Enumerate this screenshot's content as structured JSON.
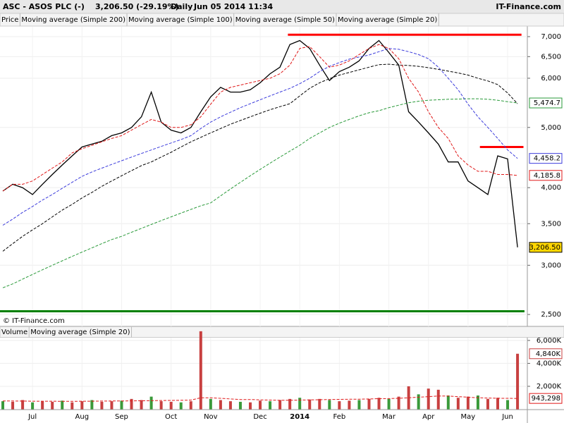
{
  "header": {
    "title": "ASC - ASOS PLC (-)",
    "quote": "3,206.50 (-29.19%)",
    "period": "Daily",
    "date": "Jun 05 2014 11:34",
    "brand": "IT-Finance.com",
    "copyright": "© IT-Finance.com"
  },
  "chart_data": [
    {
      "type": "line",
      "scale": "log",
      "grid": true,
      "categories": [
        null,
        null,
        null,
        "Jul",
        null,
        null,
        null,
        null,
        "Aug",
        null,
        null,
        null,
        "Sep",
        null,
        null,
        null,
        null,
        "Oct",
        null,
        null,
        null,
        "Nov",
        null,
        null,
        null,
        null,
        "Dec",
        null,
        null,
        null,
        "2014",
        null,
        null,
        null,
        "Feb",
        null,
        null,
        null,
        null,
        "Mar",
        null,
        null,
        null,
        "Apr",
        null,
        null,
        null,
        "May",
        null,
        null,
        null,
        "Jun",
        null
      ],
      "ylim": [
        2540,
        7260
      ],
      "yticks": [
        {
          "value": 2500,
          "label": "2,500"
        },
        {
          "value": 3000,
          "label": "3,000"
        },
        {
          "value": 3500,
          "label": "3,500"
        },
        {
          "value": 4000,
          "label": "4,000"
        },
        {
          "value": 5000,
          "label": "5,000"
        },
        {
          "value": 6000,
          "label": "6,000"
        },
        {
          "value": 6500,
          "label": "6,500"
        },
        {
          "value": 7000,
          "label": "7,000"
        }
      ],
      "hlines": [
        {
          "value": 7050,
          "color": "#ff0000",
          "span": [
            28.8,
            52.4
          ]
        },
        {
          "value": 4650,
          "color": "#ff0000",
          "span": [
            48.2,
            52.6
          ]
        },
        {
          "value": 2530,
          "color": "#008000",
          "span": [
            -0.3,
            52.7
          ]
        }
      ],
      "series": [
        {
          "name": "Price",
          "color": "#000000",
          "dash": false,
          "label_bg": "#ffd700",
          "value_labels": {
            "52": "3,206.50"
          },
          "values": [
            3950,
            4050,
            4000,
            3900,
            4050,
            4200,
            4350,
            4500,
            4650,
            4700,
            4750,
            4850,
            4900,
            5000,
            5200,
            5700,
            5100,
            4950,
            4900,
            5000,
            5300,
            5600,
            5800,
            5700,
            5700,
            5750,
            5900,
            6100,
            6250,
            6800,
            6900,
            6700,
            6300,
            5950,
            6150,
            6250,
            6400,
            6700,
            6900,
            6600,
            6300,
            5300,
            5100,
            4900,
            4700,
            4400,
            4400,
            4100,
            4000,
            3900,
            4500,
            4450,
            3206.5
          ]
        },
        {
          "name": "Moving average (Simple 200)",
          "color": "#2a9a3a",
          "dash": true,
          "label_bg": "#ffffff",
          "value_labels": {
            "52": "5,474.7"
          },
          "values": [
            2760,
            2800,
            2850,
            2900,
            2950,
            3000,
            3050,
            3100,
            3150,
            3200,
            3250,
            3300,
            3340,
            3390,
            3440,
            3490,
            3540,
            3590,
            3640,
            3690,
            3740,
            3780,
            3880,
            3980,
            4080,
            4180,
            4280,
            4380,
            4480,
            4580,
            4680,
            4800,
            4900,
            5000,
            5080,
            5150,
            5220,
            5280,
            5320,
            5380,
            5430,
            5480,
            5510,
            5530,
            5540,
            5550,
            5555,
            5560,
            5560,
            5550,
            5530,
            5500,
            5474.7
          ]
        },
        {
          "name": "Moving average (Simple 100)",
          "color": "#000000",
          "dash": true,
          "label_bg": "#ffffff",
          "value_labels": {},
          "values": [
            3160,
            3250,
            3340,
            3420,
            3500,
            3590,
            3680,
            3760,
            3850,
            3930,
            4020,
            4100,
            4180,
            4260,
            4340,
            4400,
            4480,
            4560,
            4650,
            4740,
            4820,
            4900,
            4980,
            5060,
            5130,
            5200,
            5270,
            5340,
            5400,
            5460,
            5620,
            5780,
            5900,
            5990,
            6070,
            6130,
            6190,
            6250,
            6310,
            6320,
            6300,
            6290,
            6270,
            6240,
            6200,
            6160,
            6120,
            6070,
            6000,
            5940,
            5860,
            5680,
            5460
          ]
        },
        {
          "name": "Moving average (Simple 50)",
          "color": "#3c3cdc",
          "dash": true,
          "label_bg": "#ffffff",
          "value_labels": {
            "52": "4,458.2"
          },
          "values": [
            3480,
            3560,
            3650,
            3730,
            3820,
            3900,
            3990,
            4080,
            4170,
            4240,
            4300,
            4360,
            4420,
            4480,
            4540,
            4600,
            4660,
            4720,
            4780,
            4850,
            4980,
            5100,
            5200,
            5290,
            5380,
            5460,
            5540,
            5620,
            5700,
            5780,
            5880,
            6000,
            6150,
            6270,
            6360,
            6440,
            6490,
            6540,
            6620,
            6700,
            6680,
            6620,
            6550,
            6450,
            6250,
            6000,
            5750,
            5450,
            5200,
            5000,
            4800,
            4600,
            4458.2
          ]
        },
        {
          "name": "Moving average (Simple 20)",
          "color": "#e01818",
          "dash": true,
          "label_bg": "#ffffff",
          "value_labels": {
            "52": "4,185.8"
          },
          "values": [
            3950,
            4050,
            4050,
            4100,
            4200,
            4300,
            4400,
            4550,
            4620,
            4680,
            4740,
            4800,
            4850,
            4950,
            5050,
            5150,
            5100,
            5000,
            5000,
            5050,
            5200,
            5450,
            5700,
            5800,
            5850,
            5900,
            5950,
            6000,
            6100,
            6300,
            6700,
            6750,
            6500,
            6250,
            6300,
            6400,
            6550,
            6700,
            6800,
            6700,
            6450,
            6000,
            5700,
            5300,
            5000,
            4800,
            4500,
            4350,
            4250,
            4250,
            4200,
            4200,
            4185.8
          ]
        }
      ]
    },
    {
      "type": "bar",
      "grid": true,
      "ylim": [
        0,
        6300
      ],
      "yticks": [
        {
          "value": 2000,
          "label": "2,000K"
        },
        {
          "value": 4000,
          "label": "4,000K"
        },
        {
          "value": 6000,
          "label": "6,000K"
        }
      ],
      "series": [
        {
          "name": "Volume",
          "color": "#c84040",
          "value_labels": {
            "52": "4,840K"
          },
          "values": [
            700,
            650,
            800,
            600,
            700,
            650,
            750,
            600,
            700,
            800,
            650,
            700,
            750,
            900,
            800,
            1100,
            700,
            650,
            600,
            700,
            6800,
            900,
            800,
            700,
            650,
            600,
            750,
            700,
            800,
            900,
            1000,
            850,
            900,
            800,
            700,
            750,
            800,
            900,
            1000,
            900,
            1100,
            2000,
            1300,
            1800,
            1700,
            1200,
            1000,
            1100,
            1200,
            900,
            1000,
            800,
            4840
          ]
        },
        {
          "name": "Moving average (Simple 20)",
          "color": "#e01818",
          "dash": true,
          "label_bg": "#ffffff",
          "value_labels": {
            "52": "943,298"
          },
          "values": [
            720,
            720,
            710,
            700,
            700,
            700,
            690,
            690,
            700,
            700,
            710,
            720,
            720,
            730,
            740,
            750,
            760,
            770,
            780,
            800,
            1000,
            1000,
            950,
            900,
            850,
            850,
            820,
            800,
            780,
            780,
            800,
            820,
            830,
            850,
            860,
            870,
            880,
            900,
            920,
            930,
            950,
            1000,
            1050,
            1100,
            1150,
            1150,
            1100,
            1050,
            1000,
            980,
            960,
            950,
            943.298
          ]
        }
      ]
    }
  ]
}
